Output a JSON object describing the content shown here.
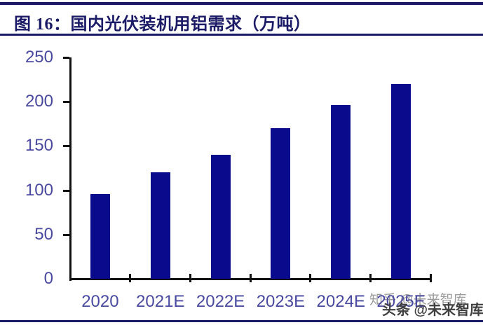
{
  "header": {
    "title": "图 16：国内光伏装机用铝需求（万吨）"
  },
  "watermarks": {
    "zhihu": "知乎 @未来智库",
    "toutiao": "头条 @未来智库"
  },
  "colors": {
    "bar_fill": "#0a0a8c",
    "axis_label_text": "#4a4aa0",
    "title_and_rules": "#1a1a66",
    "axis_line": "#111111",
    "watermark_gray": "#9b9b9b",
    "watermark_dark": "#3f3f3f"
  },
  "chart_data": {
    "type": "bar",
    "title": "国内光伏装机用铝需求（万吨）",
    "categories": [
      "2020",
      "2021E",
      "2022E",
      "2023E",
      "2024E",
      "2025E"
    ],
    "values": [
      96,
      120,
      140,
      170,
      196,
      220
    ],
    "xlabel": "",
    "ylabel": "",
    "ylim": [
      0,
      250
    ],
    "yticks": [
      0,
      50,
      100,
      150,
      200,
      250
    ],
    "grid": false,
    "legend": false
  }
}
